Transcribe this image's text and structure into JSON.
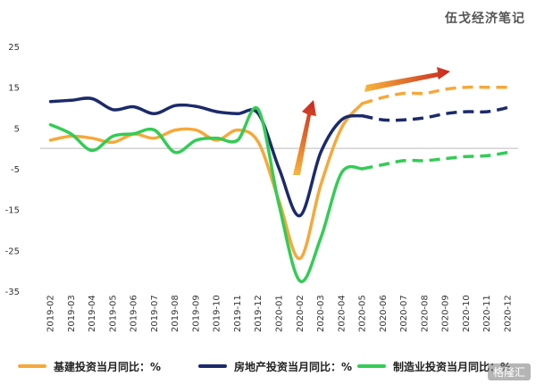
{
  "watermark": "伍戈经济笔记",
  "corner_mark": "格隆汇",
  "colors": {
    "construction": "#F5A93A",
    "real_estate": "#1B2A6B",
    "manufacturing": "#33CC55",
    "arrow": "#C8261E",
    "zero_line": "#BBBBBB"
  },
  "legend": [
    {
      "label": "基建投资当月同比：%",
      "color": "#F5A93A"
    },
    {
      "label": "房地产投资当月同比：%",
      "color": "#1B2A6B"
    },
    {
      "label": "制造业投资当月同比：%",
      "color": "#33CC55"
    }
  ],
  "chart_data": {
    "type": "line",
    "title": "",
    "xlabel": "",
    "ylabel": "",
    "ylim": [
      -35,
      25
    ],
    "yticks": [
      25,
      15,
      5,
      -5,
      -15,
      -25,
      -35
    ],
    "x": [
      "2019-02",
      "2019-03",
      "2019-04",
      "2019-05",
      "2019-06",
      "2019-07",
      "2019-08",
      "2019-09",
      "2019-10",
      "2019-11",
      "2019-12",
      "2020-01",
      "2020-02",
      "2020-03",
      "2020-04",
      "2020-05",
      "2020-06",
      "2020-07",
      "2020-08",
      "2020-09",
      "2020-10",
      "2020-11",
      "2020-12"
    ],
    "forecast_start": "2020-05",
    "grid": false,
    "legend_position": "bottom",
    "series": [
      {
        "name": "基建投资当月同比：%",
        "color": "#F5A93A",
        "values": [
          2,
          3,
          2.5,
          1.5,
          3.5,
          2.5,
          4.5,
          4.5,
          2,
          4.5,
          1.5,
          -13,
          -27,
          -9,
          5,
          11,
          12.5,
          13.5,
          13.5,
          14.5,
          15,
          15,
          15
        ]
      },
      {
        "name": "房地产投资当月同比：%",
        "color": "#1B2A6B",
        "values": [
          11.5,
          11.8,
          12.2,
          9.5,
          10.2,
          8.5,
          10.5,
          10.3,
          9,
          8.5,
          8.5,
          -5,
          -16.5,
          -1,
          7,
          8,
          7,
          7,
          7.5,
          8.5,
          9,
          9,
          10
        ]
      },
      {
        "name": "制造业投资当月同比：%",
        "color": "#33CC55",
        "values": [
          5.8,
          3.5,
          -0.5,
          3,
          3.6,
          4.5,
          -1,
          2,
          2.5,
          2,
          9.5,
          -14,
          -32.5,
          -22,
          -6,
          -5,
          -4,
          -3,
          -3,
          -2.5,
          -2,
          -1.8,
          -1
        ]
      }
    ]
  }
}
